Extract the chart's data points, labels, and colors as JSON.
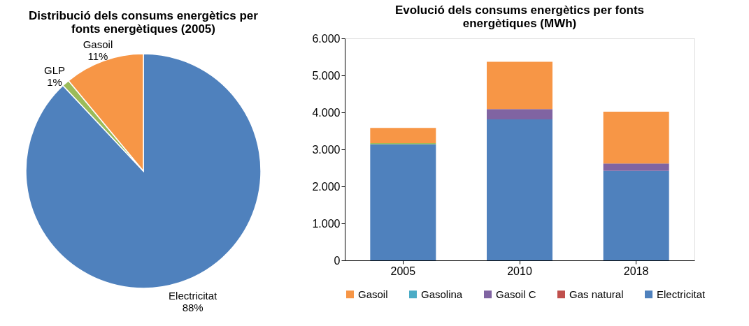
{
  "chart_data": [
    {
      "type": "pie",
      "title": "Distribució dels consums energètics per fonts energètiques (2005)",
      "categories": [
        "Electricitat",
        "GLP",
        "Gasoil"
      ],
      "values": [
        88,
        1,
        11
      ],
      "value_labels": [
        "88%",
        "1%",
        "11%"
      ],
      "colors": [
        "#4f81bd",
        "#9bbb59",
        "#f79646"
      ],
      "legend": false
    },
    {
      "type": "bar",
      "title": "Evolució dels consums energètics per fonts energètiques (MWh)",
      "categories": [
        "2005",
        "2010",
        "2018"
      ],
      "stacked": true,
      "series": [
        {
          "name": "Electricitat",
          "color": "#4f81bd",
          "values": [
            3140,
            3810,
            2420
          ]
        },
        {
          "color": "#9bbb59",
          "values": [
            30,
            null,
            null
          ]
        },
        {
          "name": "Gas natural",
          "color": "#c0504d",
          "values": [
            null,
            null,
            null
          ]
        },
        {
          "name": "Gasoil C",
          "color": "#8064a2",
          "values": [
            null,
            280,
            200
          ]
        },
        {
          "name": "Gasolina",
          "color": "#4bacc6",
          "values": [
            null,
            null,
            null
          ]
        },
        {
          "name": "Gasoil",
          "color": "#f79646",
          "values": [
            410,
            1280,
            1400
          ]
        }
      ],
      "ylim": [
        0,
        6000
      ],
      "yticks": [
        {
          "value": 0,
          "label": "0"
        },
        {
          "value": 1000,
          "label": "1.000"
        },
        {
          "value": 2000,
          "label": "2.000"
        },
        {
          "value": 3000,
          "label": "3.000"
        },
        {
          "value": 4000,
          "label": "4.000"
        },
        {
          "value": 5000,
          "label": "5.000"
        },
        {
          "value": 6000,
          "label": "6.000"
        }
      ],
      "grid": false,
      "legend": "bottom"
    }
  ]
}
